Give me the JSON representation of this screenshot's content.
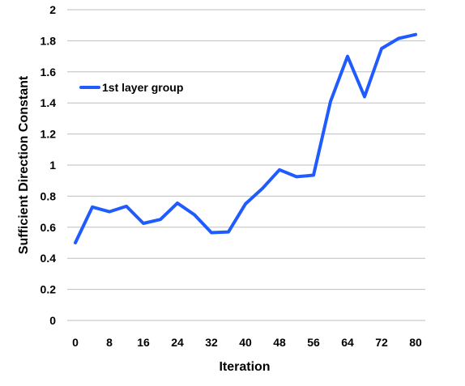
{
  "chart_data": {
    "type": "line",
    "xlabel": "Iteration",
    "ylabel": "Sufficient Direction Constant",
    "xlim": [
      0,
      80
    ],
    "ylim": [
      0,
      2
    ],
    "x_ticks": [
      0,
      8,
      16,
      24,
      32,
      40,
      48,
      56,
      64,
      72,
      80
    ],
    "y_ticks": [
      0,
      0.2,
      0.4,
      0.6,
      0.8,
      1,
      1.2,
      1.4,
      1.6,
      1.8,
      2
    ],
    "grid": "horizontal",
    "legend_position": "top-left",
    "series": [
      {
        "name": "1st layer group",
        "color": "#1f5bff",
        "x": [
          0,
          4,
          8,
          12,
          16,
          20,
          24,
          28,
          32,
          36,
          40,
          44,
          48,
          52,
          56,
          60,
          64,
          68,
          72,
          76,
          80
        ],
        "y": [
          0.5,
          0.73,
          0.7,
          0.735,
          0.625,
          0.65,
          0.755,
          0.68,
          0.565,
          0.57,
          0.75,
          0.85,
          0.97,
          0.925,
          0.935,
          1.41,
          1.7,
          1.44,
          1.75,
          1.815,
          1.84
        ]
      }
    ]
  }
}
